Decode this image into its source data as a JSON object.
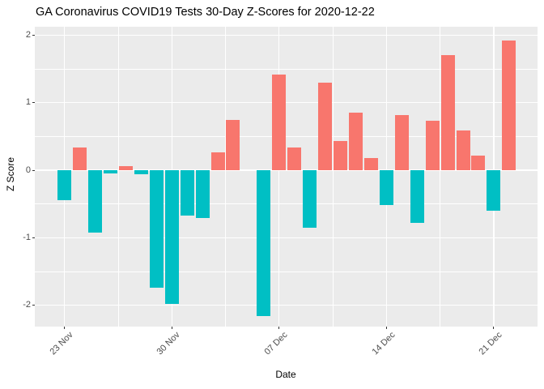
{
  "title": "GA Coronavirus COVID19 Tests 30-Day Z-Scores for 2020-12-22",
  "chart_data": {
    "type": "bar",
    "title": "GA Coronavirus COVID19 Tests 30-Day Z-Scores for 2020-12-22",
    "xlabel": "Date",
    "ylabel": "Z Score",
    "x": [
      "2020-11-23",
      "2020-11-24",
      "2020-11-25",
      "2020-11-26",
      "2020-11-27",
      "2020-11-28",
      "2020-11-29",
      "2020-11-30",
      "2020-12-01",
      "2020-12-02",
      "2020-12-03",
      "2020-12-04",
      "2020-12-05",
      "2020-12-06",
      "2020-12-07",
      "2020-12-08",
      "2020-12-09",
      "2020-12-10",
      "2020-12-11",
      "2020-12-12",
      "2020-12-13",
      "2020-12-14",
      "2020-12-15",
      "2020-12-16",
      "2020-12-17",
      "2020-12-18",
      "2020-12-19",
      "2020-12-20",
      "2020-12-21",
      "2020-12-22"
    ],
    "values": [
      -0.44,
      0.34,
      -0.92,
      -0.05,
      0.06,
      -0.06,
      -1.74,
      -1.98,
      -0.67,
      -0.71,
      0.26,
      0.74,
      0.0,
      -2.16,
      1.41,
      0.34,
      -0.85,
      1.29,
      0.43,
      0.85,
      0.18,
      -0.52,
      0.81,
      -0.78,
      0.73,
      1.7,
      0.59,
      0.21,
      -0.6,
      1.92
    ],
    "x_tick_labels": [
      "23 Nov",
      "30 Nov",
      "07 Dec",
      "14 Dec",
      "21 Dec"
    ],
    "x_tick_indices": [
      0,
      7,
      14,
      21,
      28
    ],
    "y_ticks": [
      2,
      1,
      0,
      -1,
      -2
    ],
    "y_minor_ticks": [
      1.5,
      0.5,
      -0.5,
      -1.5
    ],
    "ylim": [
      -2.32,
      2.12
    ],
    "grid": true,
    "legend": "none",
    "bar_color_positive": "#F8766D",
    "bar_color_negative": "#00BFC4",
    "panel_background": "#EBEBEB",
    "gridline_color": "#FFFFFF",
    "axis_text_color": "#4D4D4D"
  }
}
